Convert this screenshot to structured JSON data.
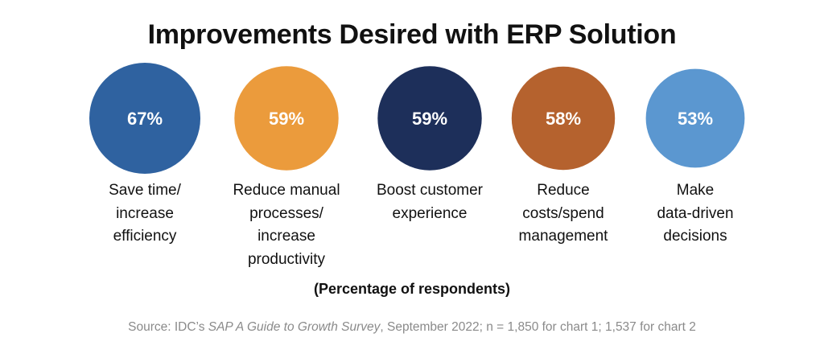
{
  "title": "Improvements Desired with ERP Solution",
  "chart_data": {
    "type": "bubble",
    "title": "Improvements Desired with ERP Solution",
    "subtitle": "(Percentage of respondents)",
    "unit": "%",
    "categories": [
      "Save time/ increase efficiency",
      "Reduce manual processes/ increase productivity",
      "Boost customer experience",
      "Reduce costs/spend management",
      "Make data-driven decisions"
    ],
    "values": [
      67,
      59,
      59,
      58,
      53
    ],
    "value_labels": [
      "67%",
      "59%",
      "59%",
      "58%",
      "53%"
    ],
    "label_lines": [
      [
        "Save time/",
        "increase",
        "efficiency"
      ],
      [
        "Reduce manual",
        "processes/",
        "increase",
        "productivity"
      ],
      [
        "Boost customer",
        "experience"
      ],
      [
        "Reduce",
        "costs/spend",
        "management"
      ],
      [
        "Make",
        "data-driven",
        "decisions"
      ]
    ],
    "colors": [
      "#2f62a0",
      "#eb9b3c",
      "#1d2f5a",
      "#b5622e",
      "#5b97d0"
    ]
  },
  "note": "(Percentage of respondents)",
  "source": {
    "prefix": "Source: IDC’s ",
    "survey": "SAP A Guide to Growth Survey",
    "suffix": ", September 2022; n = 1,850 for chart 1; 1,537 for chart 2"
  }
}
